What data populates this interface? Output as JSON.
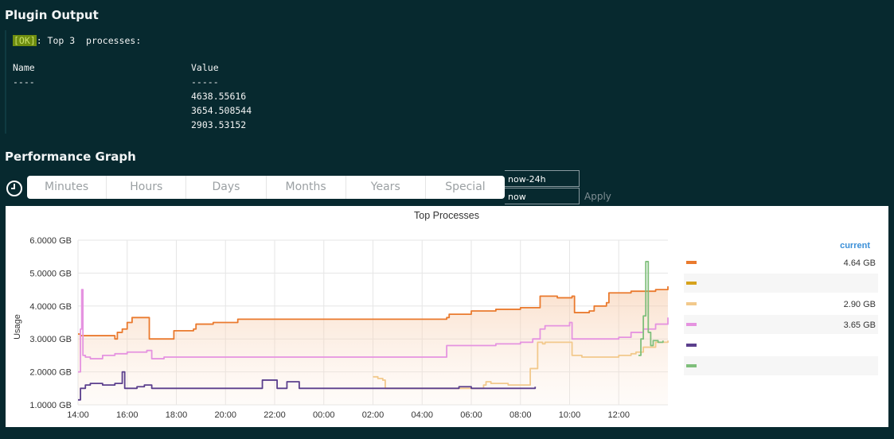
{
  "plugin_output": {
    "title": "Plugin Output",
    "status_badge": "[OK]",
    "status_text": ": Top 3  processes:",
    "header_name": "Name",
    "header_value": "Value",
    "sep_name": "----",
    "sep_value": "-----",
    "values": [
      "4638.55616",
      "3654.508544",
      "2903.53152"
    ]
  },
  "performance": {
    "title": "Performance Graph",
    "tabs": [
      "Minutes",
      "Hours",
      "Days",
      "Months",
      "Years",
      "Special"
    ],
    "from_value": "now-24h",
    "to_value": "now",
    "apply_label": "Apply"
  },
  "chart_data": {
    "type": "line",
    "title": "Top Processes",
    "ylabel": "Usage",
    "ylim": [
      1,
      6
    ],
    "yticks": [
      "1.0000 GB",
      "2.0000 GB",
      "3.0000 GB",
      "4.0000 GB",
      "5.0000 GB",
      "6.0000 GB"
    ],
    "xtick_labels": [
      "14:00",
      "16:00",
      "18:00",
      "20:00",
      "22:00",
      "00:00",
      "02:00",
      "04:00",
      "06:00",
      "08:00",
      "10:00",
      "12:00"
    ],
    "xlim_hours": [
      0,
      24
    ],
    "legend_header": "current",
    "series": [
      {
        "name": "orange",
        "color": "#ea7a2e",
        "current": "4.64 GB",
        "fill": true,
        "x": [
          0,
          0.1,
          1.1,
          1.5,
          1.6,
          1.8,
          2.0,
          2.2,
          2.5,
          2.9,
          3.0,
          3.8,
          3.9,
          4.7,
          4.8,
          5.5,
          6.5,
          7.5,
          8.5,
          9.5,
          10.5,
          11.0,
          11.5,
          12.5,
          13.5,
          14.5,
          15.0,
          15.1,
          16.0,
          17.0,
          18.0,
          18.6,
          18.8,
          19.5,
          20.1,
          20.2,
          20.8,
          21.0,
          21.5,
          21.6,
          22.5,
          23.5,
          24.0
        ],
        "y": [
          3.15,
          3.1,
          3.1,
          3.0,
          3.2,
          3.3,
          3.5,
          3.65,
          3.65,
          3.0,
          3.0,
          3.0,
          3.25,
          3.3,
          3.45,
          3.5,
          3.6,
          3.6,
          3.6,
          3.6,
          3.6,
          3.6,
          3.6,
          3.6,
          3.6,
          3.6,
          3.65,
          3.75,
          3.85,
          3.9,
          3.95,
          3.95,
          4.3,
          4.25,
          4.3,
          3.8,
          3.85,
          4.0,
          4.1,
          4.4,
          4.45,
          4.5,
          4.6
        ]
      },
      {
        "name": "gold",
        "color": "#d6a21c",
        "current": "",
        "fill": false,
        "x": [],
        "y": []
      },
      {
        "name": "peach",
        "color": "#f2c98c",
        "current": "2.90 GB",
        "fill": false,
        "x": [
          12.0,
          12.2,
          12.4,
          12.5,
          16.5,
          16.6,
          16.8,
          17.0,
          17.5,
          18.3,
          18.4,
          18.7,
          18.9,
          19.0,
          20.0,
          20.1,
          20.5,
          21.0,
          21.5,
          22.0,
          22.5,
          22.7,
          23.0,
          23.5,
          24.0
        ],
        "y": [
          1.85,
          1.8,
          1.75,
          1.5,
          1.6,
          1.7,
          1.65,
          1.65,
          1.6,
          1.6,
          2.1,
          2.9,
          2.85,
          2.9,
          2.9,
          2.5,
          2.45,
          2.45,
          2.45,
          2.5,
          2.55,
          2.6,
          2.75,
          2.9,
          2.95
        ]
      },
      {
        "name": "violet",
        "color": "#e593e0",
        "current": "3.65 GB",
        "fill": false,
        "x": [
          0,
          0.1,
          0.15,
          0.2,
          0.3,
          0.5,
          1.0,
          1.5,
          2.0,
          2.8,
          3.0,
          3.5,
          4.0,
          5.0,
          6.0,
          7.0,
          8.0,
          9.0,
          10.0,
          11.0,
          12.0,
          13.0,
          14.0,
          14.5,
          15.0,
          16.0,
          17.0,
          18.0,
          18.5,
          18.8,
          19.0,
          20.0,
          20.1,
          21.0,
          22.0,
          22.5,
          23.0,
          23.5,
          24.0
        ],
        "y": [
          2.0,
          3.3,
          4.5,
          2.5,
          2.45,
          2.4,
          2.5,
          2.55,
          2.6,
          2.65,
          2.4,
          2.45,
          2.45,
          2.45,
          2.45,
          2.45,
          2.45,
          2.45,
          2.45,
          2.45,
          2.45,
          2.45,
          2.45,
          2.45,
          2.8,
          2.8,
          2.85,
          2.9,
          3.0,
          3.3,
          3.4,
          3.5,
          3.0,
          3.0,
          3.05,
          3.2,
          3.3,
          3.45,
          3.65
        ]
      },
      {
        "name": "purple",
        "color": "#5b3f8d",
        "current": "",
        "fill": false,
        "x": [
          0,
          0.1,
          0.3,
          0.5,
          1.0,
          1.5,
          1.8,
          1.9,
          2.3,
          2.4,
          2.7,
          3.0,
          3.5,
          4.0,
          5.0,
          6.0,
          7.0,
          7.5,
          7.6,
          8.0,
          8.1,
          8.3,
          8.5,
          9.0,
          10.0,
          11.0,
          12.0,
          12.5,
          13.0,
          14.0,
          15.0,
          15.5,
          16.0,
          17.0,
          17.5,
          18.0,
          18.6
        ],
        "y": [
          1.15,
          1.5,
          1.6,
          1.65,
          1.6,
          1.65,
          2.0,
          1.5,
          1.5,
          1.55,
          1.6,
          1.5,
          1.5,
          1.5,
          1.5,
          1.5,
          1.5,
          1.75,
          1.75,
          1.75,
          1.5,
          1.5,
          1.7,
          1.5,
          1.5,
          1.5,
          1.5,
          1.5,
          1.5,
          1.5,
          1.5,
          1.55,
          1.5,
          1.5,
          1.5,
          1.5,
          1.55
        ]
      },
      {
        "name": "green",
        "color": "#7fbf7b",
        "current": "",
        "fill": false,
        "x": [
          22.8,
          22.9,
          23.0,
          23.1,
          23.2,
          23.3,
          23.4,
          23.6,
          23.8
        ],
        "y": [
          2.5,
          3.0,
          3.7,
          5.35,
          3.2,
          2.8,
          2.95,
          2.9,
          2.95
        ]
      }
    ]
  }
}
